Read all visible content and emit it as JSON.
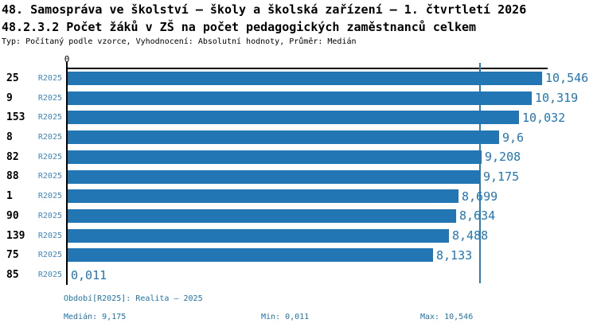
{
  "header": {
    "title": "48. Samospráva ve školství – školy a školská zařízení – 1. čtvrtletí 2026",
    "subtitle": "48.2.3.2 Počet žáků v ZŠ na počet pedagogických zaměstnanců celkem",
    "meta": "Typ: Počítaný podle vzorce, Vyhodnocení: Absolutní hodnoty, Průměr: Medián"
  },
  "chart_data": {
    "type": "bar",
    "orientation": "horizontal",
    "axis_zero_label": "0",
    "series_name": "R2025",
    "xlim": [
      0,
      10.546
    ],
    "grid": false,
    "median_line_value": 9.175,
    "categories": [
      "25",
      "9",
      "153",
      "8",
      "82",
      "88",
      "1",
      "90",
      "139",
      "75",
      "85"
    ],
    "rows": [
      {
        "id": "25",
        "period": "R2025",
        "value": 10.546,
        "value_label": "10,546"
      },
      {
        "id": "9",
        "period": "R2025",
        "value": 10.319,
        "value_label": "10,319"
      },
      {
        "id": "153",
        "period": "R2025",
        "value": 10.032,
        "value_label": "10,032"
      },
      {
        "id": "8",
        "period": "R2025",
        "value": 9.6,
        "value_label": "9,6"
      },
      {
        "id": "82",
        "period": "R2025",
        "value": 9.208,
        "value_label": "9,208"
      },
      {
        "id": "88",
        "period": "R2025",
        "value": 9.175,
        "value_label": "9,175"
      },
      {
        "id": "1",
        "period": "R2025",
        "value": 8.699,
        "value_label": "8,699"
      },
      {
        "id": "90",
        "period": "R2025",
        "value": 8.634,
        "value_label": "8,634"
      },
      {
        "id": "139",
        "period": "R2025",
        "value": 8.488,
        "value_label": "8,488"
      },
      {
        "id": "75",
        "period": "R2025",
        "value": 8.133,
        "value_label": "8,133"
      },
      {
        "id": "85",
        "period": "R2025",
        "value": 0.011,
        "value_label": "0,011"
      }
    ]
  },
  "footer": {
    "period": "Období[R2025]: Realita – 2025",
    "median": "Medián: 9,175",
    "min": "Min: 0,011",
    "max": "Max: 10,546"
  },
  "colors": {
    "bar": "#2276B3",
    "median_line": "#2E7DB0",
    "period_text": "#3E86C1",
    "value_text": "#2276B3",
    "footer_text": "#1E73A8",
    "axis": "#000000"
  }
}
